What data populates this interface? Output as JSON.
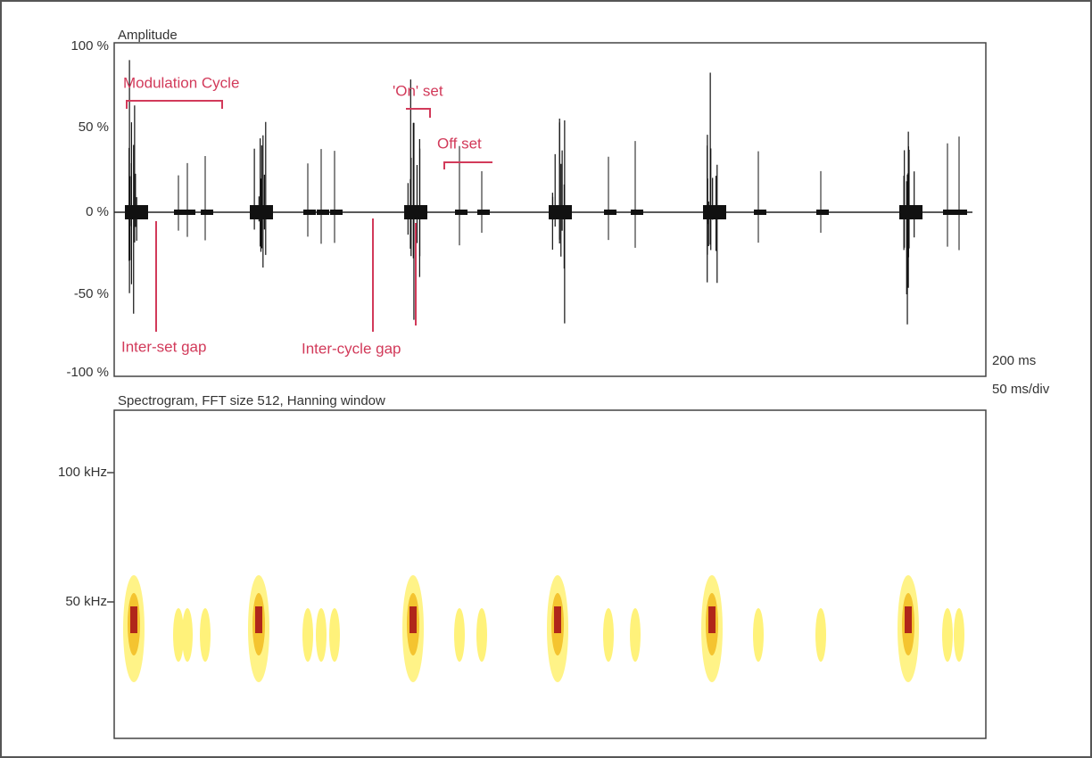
{
  "amplitude_panel": {
    "title": "Amplitude",
    "yticks": [
      "100 %",
      "50 %",
      "0 %",
      "-50 %",
      "-100 %"
    ],
    "time_scale": [
      "200 ms",
      "50 ms/div"
    ]
  },
  "annotations": {
    "modulation_cycle": "Modulation Cycle",
    "on_set": "'On' set",
    "off_set": "Off set",
    "inter_set_gap": "Inter-set gap",
    "inter_cycle_gap": "Inter-cycle gap"
  },
  "spectrogram_panel": {
    "title": "Spectrogram, FFT size 512, Hanning window",
    "yticks": [
      "100 kHz",
      "50 kHz"
    ]
  }
}
